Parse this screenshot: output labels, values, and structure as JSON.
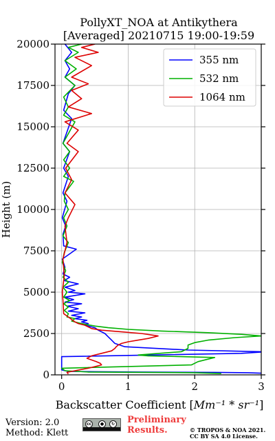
{
  "chart_data": {
    "type": "line",
    "title_line1": "PollyXT_NOA at Antikythera",
    "title_line2": "[Averaged] 20210715 19:00-19:59",
    "xlabel_prefix": "Backscatter Coefficient [",
    "xlabel_math": "Mm⁻¹ * sr⁻¹",
    "xlabel_suffix": "]",
    "ylabel": "Height (m)",
    "xlim": [
      -0.1,
      3
    ],
    "ylim": [
      0,
      20000
    ],
    "xticks": [
      0,
      1,
      2,
      3
    ],
    "yticks": [
      0,
      2500,
      5000,
      7500,
      10000,
      12500,
      15000,
      17500,
      20000
    ],
    "grid": true,
    "legend_position": "top-right",
    "series": [
      {
        "name": "355 nm",
        "color": "#0000ff",
        "points": [
          [
            3.0,
            100
          ],
          [
            2.8,
            130
          ],
          [
            2.3,
            150
          ],
          [
            1.2,
            170
          ],
          [
            0.5,
            190
          ],
          [
            0.1,
            210
          ],
          [
            0.0,
            300
          ],
          [
            0.0,
            1100
          ],
          [
            2.7,
            1300
          ],
          [
            3.0,
            1380
          ],
          [
            3.0,
            1400
          ],
          [
            1.9,
            1500
          ],
          [
            0.95,
            1700
          ],
          [
            0.8,
            1900
          ],
          [
            0.75,
            2100
          ],
          [
            0.7,
            2300
          ],
          [
            0.65,
            2500
          ],
          [
            0.55,
            2700
          ],
          [
            0.5,
            2850
          ],
          [
            0.35,
            3000
          ],
          [
            0.4,
            3100
          ],
          [
            0.3,
            3200
          ],
          [
            0.38,
            3300
          ],
          [
            0.2,
            3400
          ],
          [
            0.3,
            3500
          ],
          [
            0.15,
            3600
          ],
          [
            0.35,
            3750
          ],
          [
            0.1,
            3850
          ],
          [
            0.25,
            4000
          ],
          [
            0.08,
            4150
          ],
          [
            0.3,
            4300
          ],
          [
            0.05,
            4400
          ],
          [
            0.18,
            4550
          ],
          [
            0.05,
            4700
          ],
          [
            0.35,
            4900
          ],
          [
            0.1,
            5000
          ],
          [
            0.2,
            5100
          ],
          [
            0.05,
            5300
          ],
          [
            0.25,
            5500
          ],
          [
            0.04,
            5700
          ],
          [
            0.12,
            5900
          ],
          [
            0.02,
            6100
          ],
          [
            0.05,
            6500
          ],
          [
            0.01,
            7000
          ],
          [
            0.22,
            7600
          ],
          [
            0.03,
            7800
          ],
          [
            0.02,
            8500
          ],
          [
            0.06,
            9000
          ],
          [
            0.01,
            9500
          ],
          [
            0.08,
            10500
          ],
          [
            0.02,
            11000
          ],
          [
            0.1,
            12000
          ],
          [
            0.03,
            12500
          ],
          [
            0.12,
            13500
          ],
          [
            0.02,
            14000
          ],
          [
            0.15,
            15500
          ],
          [
            0.03,
            16000
          ],
          [
            0.1,
            17000
          ],
          [
            0.2,
            17500
          ],
          [
            0.05,
            18000
          ],
          [
            0.12,
            18500
          ],
          [
            0.05,
            19000
          ],
          [
            0.15,
            19500
          ],
          [
            0.05,
            20000
          ]
        ]
      },
      {
        "name": "532 nm",
        "color": "#00b000",
        "points": [
          [
            2.4,
            80
          ],
          [
            2.0,
            130
          ],
          [
            0.4,
            170
          ],
          [
            0.05,
            250
          ],
          [
            0.0,
            400
          ],
          [
            1.95,
            600
          ],
          [
            2.05,
            800
          ],
          [
            2.2,
            950
          ],
          [
            2.3,
            1050
          ],
          [
            1.8,
            1100
          ],
          [
            1.3,
            1150
          ],
          [
            1.15,
            1200
          ],
          [
            1.4,
            1280
          ],
          [
            1.8,
            1400
          ],
          [
            1.85,
            1500
          ],
          [
            1.9,
            1600
          ],
          [
            1.9,
            1800
          ],
          [
            2.0,
            1950
          ],
          [
            2.2,
            2100
          ],
          [
            2.6,
            2250
          ],
          [
            3.0,
            2350
          ],
          [
            2.7,
            2450
          ],
          [
            2.2,
            2550
          ],
          [
            1.5,
            2650
          ],
          [
            1.0,
            2750
          ],
          [
            0.7,
            2850
          ],
          [
            0.5,
            2950
          ],
          [
            0.3,
            3100
          ],
          [
            0.15,
            3250
          ],
          [
            0.2,
            3400
          ],
          [
            0.08,
            3500
          ],
          [
            0.1,
            3700
          ],
          [
            0.04,
            3900
          ],
          [
            0.1,
            4100
          ],
          [
            0.03,
            4300
          ],
          [
            0.12,
            4500
          ],
          [
            0.03,
            4700
          ],
          [
            0.08,
            5000
          ],
          [
            0.02,
            5300
          ],
          [
            0.1,
            5600
          ],
          [
            0.02,
            5900
          ],
          [
            0.06,
            6300
          ],
          [
            0.01,
            6800
          ],
          [
            0.04,
            7400
          ],
          [
            0.1,
            8000
          ],
          [
            0.02,
            8400
          ],
          [
            0.08,
            9000
          ],
          [
            0.03,
            9500
          ],
          [
            0.1,
            10000
          ],
          [
            0.04,
            10500
          ],
          [
            0.05,
            11000
          ],
          [
            0.18,
            11700
          ],
          [
            0.03,
            12000
          ],
          [
            0.12,
            12500
          ],
          [
            0.03,
            13000
          ],
          [
            0.12,
            13500
          ],
          [
            0.02,
            14000
          ],
          [
            0.2,
            15300
          ],
          [
            0.03,
            15700
          ],
          [
            0.1,
            16200
          ],
          [
            0.03,
            16800
          ],
          [
            0.2,
            17500
          ],
          [
            0.05,
            18000
          ],
          [
            0.22,
            18500
          ],
          [
            0.05,
            19000
          ],
          [
            0.25,
            19500
          ],
          [
            0.1,
            19800
          ],
          [
            0.3,
            20000
          ]
        ]
      },
      {
        "name": "1064 nm",
        "color": "#dd0000",
        "points": [
          [
            0.1,
            50
          ],
          [
            0.08,
            150
          ],
          [
            0.2,
            250
          ],
          [
            0.4,
            400
          ],
          [
            0.5,
            500
          ],
          [
            0.6,
            600
          ],
          [
            0.58,
            700
          ],
          [
            0.52,
            800
          ],
          [
            0.45,
            900
          ],
          [
            0.38,
            1000
          ],
          [
            0.45,
            1150
          ],
          [
            0.6,
            1300
          ],
          [
            0.75,
            1450
          ],
          [
            0.8,
            1600
          ],
          [
            0.82,
            1700
          ],
          [
            0.85,
            1800
          ],
          [
            0.9,
            1900
          ],
          [
            1.0,
            2000
          ],
          [
            1.15,
            2100
          ],
          [
            1.3,
            2200
          ],
          [
            1.45,
            2350
          ],
          [
            1.2,
            2500
          ],
          [
            0.9,
            2600
          ],
          [
            0.6,
            2700
          ],
          [
            0.45,
            2800
          ],
          [
            0.35,
            3000
          ],
          [
            0.25,
            3100
          ],
          [
            0.2,
            3200
          ],
          [
            0.15,
            3350
          ],
          [
            0.1,
            3500
          ],
          [
            0.03,
            3700
          ],
          [
            0.02,
            4500
          ],
          [
            0.01,
            5000
          ],
          [
            0.04,
            6000
          ],
          [
            0.02,
            7000
          ],
          [
            0.08,
            8000
          ],
          [
            0.05,
            9000
          ],
          [
            0.1,
            9500
          ],
          [
            0.2,
            10300
          ],
          [
            0.05,
            11000
          ],
          [
            0.15,
            11800
          ],
          [
            0.06,
            12500
          ],
          [
            0.25,
            13500
          ],
          [
            0.08,
            14000
          ],
          [
            0.25,
            14800
          ],
          [
            0.05,
            15300
          ],
          [
            0.45,
            15800
          ],
          [
            0.1,
            16200
          ],
          [
            0.3,
            16700
          ],
          [
            0.15,
            17200
          ],
          [
            0.4,
            17600
          ],
          [
            0.15,
            18000
          ],
          [
            0.45,
            18700
          ],
          [
            0.2,
            19200
          ],
          [
            0.55,
            19500
          ],
          [
            0.3,
            19800
          ],
          [
            0.5,
            20000
          ]
        ]
      }
    ]
  },
  "footer": {
    "version": "Version: 2.0",
    "method": "Method: Klett",
    "preliminary_line1": "Preliminary",
    "preliminary_line2": "Results.",
    "copyright_line1": "© TROPOS & NOA 2021.",
    "copyright_line2": "CC BY SA 4.0 License.",
    "license_badge_icons": [
      "cc-icon",
      "by-icon",
      "sa-icon"
    ]
  }
}
